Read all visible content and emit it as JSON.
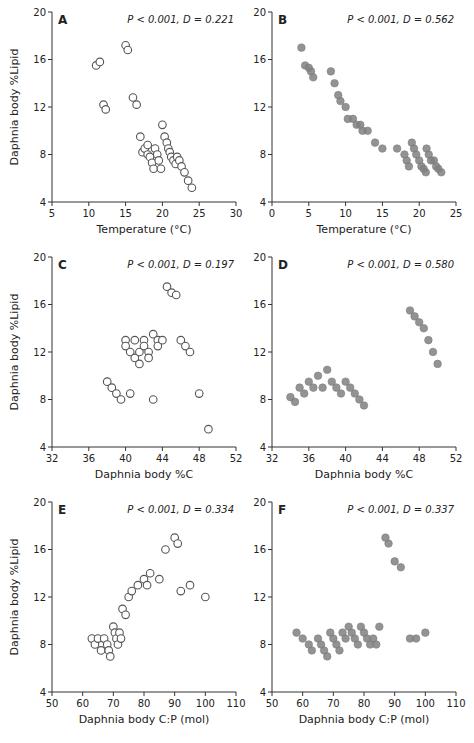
{
  "chart_data": [
    {
      "type": "scatter",
      "annotations": [
        "A",
        "P < 0.001, D = 0.221"
      ],
      "x_label": "Temperature (°C)",
      "y_label": "Daphnia body %Lipid",
      "xlim": [
        5,
        30
      ],
      "xticks": [
        5,
        10,
        15,
        20,
        25,
        30
      ],
      "ylim": [
        4,
        20
      ],
      "yticks": [
        4,
        8,
        12,
        16,
        20
      ],
      "marker": "circle-open",
      "color": "#555555",
      "x": [
        11,
        11.5,
        12,
        12.3,
        15,
        15.3,
        16,
        16.5,
        17,
        17.3,
        17.6,
        18,
        18,
        18.3,
        18.6,
        18.8,
        19,
        19.3,
        19.5,
        19.8,
        20,
        20.3,
        20.6,
        20.8,
        21,
        21.2,
        21.5,
        21.8,
        22,
        22.3,
        22.6,
        23,
        23.5,
        24
      ],
      "values": [
        15.5,
        15.8,
        12.2,
        11.8,
        17.2,
        16.8,
        12.8,
        12.2,
        9.5,
        8.2,
        8.5,
        8.8,
        8.0,
        7.8,
        7.3,
        6.8,
        8.5,
        8.0,
        7.5,
        6.8,
        10.5,
        9.5,
        9.0,
        8.5,
        8.2,
        7.8,
        7.5,
        7.2,
        7.8,
        7.5,
        7.0,
        6.5,
        5.8,
        5.2
      ]
    },
    {
      "type": "scatter",
      "annotations": [
        "B",
        "P < 0.001, D = 0.562"
      ],
      "x_label": "Temperature (°C)",
      "xlim": [
        0,
        25
      ],
      "xticks": [
        0,
        5,
        10,
        15,
        20,
        25
      ],
      "ylim": [
        4,
        20
      ],
      "yticks": [
        4,
        8,
        12,
        16,
        20
      ],
      "marker": "circle",
      "color": "#808080",
      "x": [
        4,
        4.5,
        5,
        5.3,
        5.6,
        8,
        8.5,
        9,
        9.3,
        10,
        10.3,
        11,
        11.5,
        12,
        12.3,
        13,
        14,
        15,
        17,
        18,
        18.3,
        18.6,
        19,
        19.3,
        19.6,
        20,
        20.3,
        20.6,
        20.9,
        21,
        21.3,
        21.6,
        22,
        22.3,
        22.6,
        23
      ],
      "values": [
        17.0,
        15.5,
        15.3,
        15.0,
        14.5,
        15.0,
        14.0,
        13.0,
        12.5,
        12.0,
        11.0,
        11.0,
        10.5,
        10.5,
        10.0,
        10.0,
        9.0,
        8.5,
        8.5,
        8.0,
        7.5,
        7.0,
        9.0,
        8.5,
        8.0,
        7.5,
        7.0,
        6.8,
        6.5,
        8.5,
        8.0,
        7.5,
        7.5,
        7.0,
        6.8,
        6.5
      ]
    },
    {
      "type": "scatter",
      "annotations": [
        "C",
        "P < 0.001, D = 0.197"
      ],
      "x_label": "Daphnia body %C",
      "y_label": "Daphnia body %Lipid",
      "xlim": [
        32,
        52
      ],
      "xticks": [
        32,
        36,
        40,
        44,
        48,
        52
      ],
      "ylim": [
        4,
        20
      ],
      "yticks": [
        4,
        8,
        12,
        16,
        20
      ],
      "marker": "circle-open",
      "color": "#555555",
      "x": [
        38,
        38.5,
        39,
        39.5,
        40,
        40,
        40.5,
        40.5,
        41,
        41,
        41.5,
        41.5,
        42,
        42,
        42.5,
        42.5,
        43,
        43.5,
        43.5,
        44,
        44.5,
        45,
        45.5,
        46,
        46.5,
        47,
        43,
        48,
        49
      ],
      "values": [
        9.5,
        9.0,
        8.5,
        8.0,
        13.0,
        12.5,
        12.0,
        8.5,
        13.0,
        11.5,
        12.0,
        11.0,
        13.0,
        12.5,
        12.0,
        11.5,
        13.5,
        13.0,
        12.5,
        13.0,
        17.5,
        17.0,
        16.8,
        13.0,
        12.5,
        12.0,
        8.0,
        8.5,
        5.5
      ]
    },
    {
      "type": "scatter",
      "annotations": [
        "D",
        "P < 0.001, D = 0.580"
      ],
      "x_label": "Daphnia body %C",
      "xlim": [
        32,
        52
      ],
      "xticks": [
        32,
        36,
        40,
        44,
        48,
        52
      ],
      "ylim": [
        4,
        20
      ],
      "yticks": [
        4,
        8,
        12,
        16,
        20
      ],
      "marker": "circle",
      "color": "#808080",
      "x": [
        34,
        34.5,
        35,
        35.5,
        36,
        36.5,
        37,
        37.5,
        38,
        38.5,
        39,
        39.5,
        40,
        40.5,
        41,
        41.5,
        42,
        47,
        47.5,
        48,
        48.5,
        49,
        49.5,
        50
      ],
      "values": [
        8.2,
        7.8,
        9.0,
        8.5,
        9.5,
        9.0,
        10.0,
        9.0,
        10.5,
        9.5,
        9.0,
        8.5,
        9.5,
        9.0,
        8.5,
        8.0,
        7.5,
        15.5,
        15.0,
        14.5,
        14.0,
        13.0,
        12.0,
        11.0
      ]
    },
    {
      "type": "scatter",
      "annotations": [
        "E",
        "P < 0.001, D = 0.334"
      ],
      "x_label": "Daphnia body C:P (mol)",
      "y_label": "Daphnia body %Lipid",
      "xlim": [
        50,
        110
      ],
      "xticks": [
        50,
        60,
        70,
        80,
        90,
        100,
        110
      ],
      "ylim": [
        4,
        20
      ],
      "yticks": [
        4,
        8,
        12,
        16,
        20
      ],
      "marker": "circle-open",
      "color": "#555555",
      "x": [
        63,
        64,
        65,
        66,
        67,
        68,
        68.5,
        69,
        70,
        70.5,
        71,
        71.5,
        72,
        72.5,
        73,
        74,
        75,
        76,
        78,
        80,
        81,
        82,
        85,
        87,
        90,
        91,
        92,
        95,
        100
      ],
      "values": [
        8.5,
        8.0,
        8.5,
        7.5,
        8.5,
        8.0,
        7.5,
        7.0,
        9.5,
        9.0,
        8.5,
        8.0,
        9.0,
        8.5,
        11.0,
        10.5,
        12.0,
        12.5,
        13.0,
        13.5,
        13.0,
        14.0,
        13.5,
        16.0,
        17.0,
        16.5,
        12.5,
        13.0,
        12.0
      ]
    },
    {
      "type": "scatter",
      "annotations": [
        "F",
        "P < 0.001, D = 0.337"
      ],
      "x_label": "Daphnia body C:P (mol)",
      "xlim": [
        50,
        110
      ],
      "xticks": [
        50,
        60,
        70,
        80,
        90,
        100,
        110
      ],
      "ylim": [
        4,
        20
      ],
      "yticks": [
        4,
        8,
        12,
        16,
        20
      ],
      "marker": "circle",
      "color": "#808080",
      "x": [
        58,
        60,
        62,
        63,
        65,
        66,
        67,
        68,
        69,
        70,
        71,
        72,
        73,
        74,
        75,
        76,
        77,
        78,
        79,
        80,
        81,
        82,
        83,
        84,
        85,
        87,
        88,
        90,
        92,
        95,
        97,
        100
      ],
      "values": [
        9.0,
        8.5,
        8.0,
        7.5,
        8.5,
        8.0,
        7.5,
        7.0,
        9.0,
        8.5,
        8.0,
        7.5,
        9.0,
        8.5,
        9.5,
        9.0,
        8.5,
        8.0,
        9.5,
        9.0,
        8.5,
        8.0,
        8.5,
        8.0,
        9.5,
        17.0,
        16.5,
        15.0,
        14.5,
        8.5,
        8.5,
        9.0
      ]
    }
  ]
}
